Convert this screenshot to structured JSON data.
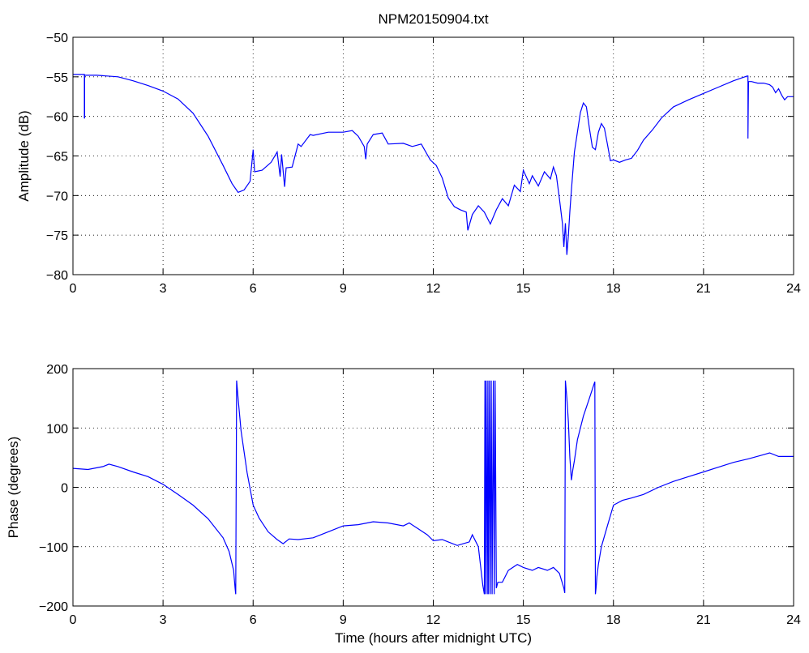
{
  "title": "NPM20150904.txt",
  "chart_data": [
    {
      "type": "line",
      "title": "NPM20150904.txt",
      "xlabel": "",
      "ylabel": "Amplitude (dB)",
      "xlim": [
        0,
        24
      ],
      "ylim": [
        -80,
        -50
      ],
      "xticks": [
        0,
        3,
        6,
        9,
        12,
        15,
        18,
        21,
        24
      ],
      "xtick_labels": [
        "0",
        "3",
        "6",
        "9",
        "12",
        "15",
        "18",
        "21",
        "24"
      ],
      "yticks": [
        -50,
        -55,
        -60,
        -65,
        -70,
        -75,
        -80
      ],
      "ytick_labels": [
        "−50",
        "−55",
        "−60",
        "−65",
        "−70",
        "−75",
        "−80"
      ],
      "grid": true,
      "color": "#0000ff",
      "series": [
        {
          "x": [
            0,
            0.3,
            0.38,
            0.38,
            0.39,
            0.39,
            0.8,
            1.5,
            2.0,
            2.5,
            3.0,
            3.5,
            4.0,
            4.5,
            5.0,
            5.3,
            5.5,
            5.7,
            5.9,
            6.0,
            6.05,
            6.3,
            6.6,
            6.8,
            6.9,
            6.95,
            7.05,
            7.1,
            7.3,
            7.5,
            7.6,
            7.9,
            8.0,
            8.5,
            9.0,
            9.3,
            9.5,
            9.7,
            9.75,
            9.8,
            10.0,
            10.3,
            10.5,
            11.0,
            11.3,
            11.6,
            11.9,
            12.1,
            12.3,
            12.5,
            12.7,
            12.9,
            13.1,
            13.15,
            13.3,
            13.5,
            13.7,
            13.9,
            14.1,
            14.3,
            14.5,
            14.7,
            14.9,
            15.0,
            15.2,
            15.3,
            15.5,
            15.7,
            15.9,
            16.0,
            16.1,
            16.2,
            16.3,
            16.35,
            16.4,
            16.45,
            16.5,
            16.55,
            16.6,
            16.7,
            16.8,
            16.9,
            17.0,
            17.1,
            17.2,
            17.3,
            17.4,
            17.5,
            17.6,
            17.7,
            17.8,
            17.9,
            18.0,
            18.2,
            18.4,
            18.6,
            18.8,
            19.0,
            19.3,
            19.6,
            20.0,
            20.5,
            21.0,
            21.5,
            22.0,
            22.3,
            22.45,
            22.48,
            22.48,
            22.5,
            22.6,
            22.8,
            23.0,
            23.2,
            23.3,
            23.4,
            23.5,
            23.6,
            23.7,
            23.8,
            24.0
          ],
          "y": [
            -54.7,
            -54.7,
            -54.7,
            -60.2,
            -60.2,
            -54.8,
            -54.8,
            -55.0,
            -55.5,
            -56.1,
            -56.8,
            -57.8,
            -59.6,
            -62.5,
            -66.2,
            -68.5,
            -69.6,
            -69.3,
            -68.2,
            -64.2,
            -67.0,
            -66.8,
            -65.8,
            -64.5,
            -67.6,
            -64.8,
            -68.9,
            -66.5,
            -66.4,
            -63.5,
            -63.8,
            -62.3,
            -62.4,
            -62.0,
            -62.0,
            -61.8,
            -62.5,
            -63.8,
            -65.4,
            -63.5,
            -62.3,
            -62.1,
            -63.5,
            -63.4,
            -63.8,
            -63.5,
            -65.5,
            -66.2,
            -67.8,
            -70.3,
            -71.4,
            -71.8,
            -72.1,
            -74.4,
            -72.4,
            -71.3,
            -72.1,
            -73.6,
            -71.8,
            -70.4,
            -71.3,
            -68.7,
            -69.5,
            -66.8,
            -68.5,
            -67.5,
            -68.8,
            -67.0,
            -67.9,
            -66.4,
            -67.5,
            -70.4,
            -73.5,
            -76.5,
            -73.5,
            -77.5,
            -75.0,
            -72.0,
            -69.3,
            -64.5,
            -62.0,
            -59.5,
            -58.3,
            -58.8,
            -61.5,
            -63.9,
            -64.2,
            -62.0,
            -60.9,
            -61.5,
            -63.5,
            -65.6,
            -65.5,
            -65.8,
            -65.5,
            -65.3,
            -64.3,
            -63.0,
            -61.7,
            -60.2,
            -58.8,
            -57.9,
            -57.1,
            -56.3,
            -55.5,
            -55.1,
            -54.9,
            -54.9,
            -62.8,
            -55.6,
            -55.6,
            -55.8,
            -55.8,
            -56.0,
            -56.3,
            -57.0,
            -56.5,
            -57.3,
            -57.9,
            -57.5,
            -57.5
          ]
        }
      ]
    },
    {
      "type": "line",
      "title": "",
      "xlabel": "Time (hours after midnight UTC)",
      "ylabel": "Phase (degrees)",
      "xlim": [
        0,
        24
      ],
      "ylim": [
        -200,
        200
      ],
      "xticks": [
        0,
        3,
        6,
        9,
        12,
        15,
        18,
        21,
        24
      ],
      "xtick_labels": [
        "0",
        "3",
        "6",
        "9",
        "12",
        "15",
        "18",
        "21",
        "24"
      ],
      "yticks": [
        200,
        100,
        0,
        -100,
        -200
      ],
      "ytick_labels": [
        "200",
        "100",
        "0",
        "−100",
        "−200"
      ],
      "grid": true,
      "color": "#0000ff",
      "series": [
        {
          "x": [
            0,
            0.5,
            1.0,
            1.2,
            1.5,
            2.0,
            2.5,
            3.0,
            3.5,
            4.0,
            4.5,
            5.0,
            5.2,
            5.35,
            5.4,
            5.42,
            5.45,
            5.5,
            5.6,
            5.8,
            6.0,
            6.2,
            6.5,
            6.8,
            7.0,
            7.2,
            7.5,
            8.0,
            8.5,
            9.0,
            9.5,
            10.0,
            10.5,
            11.0,
            11.2,
            11.5,
            11.8,
            12.0,
            12.3,
            12.5,
            12.8,
            13.0,
            13.2,
            13.3,
            13.5,
            13.65,
            13.7,
            13.72,
            13.74,
            13.76,
            13.8,
            13.82,
            13.84,
            13.87,
            13.9,
            13.93,
            13.96,
            14.0,
            14.03,
            14.06,
            14.1,
            14.15,
            14.3,
            14.5,
            14.8,
            15.0,
            15.3,
            15.5,
            15.8,
            16.0,
            16.2,
            16.35,
            16.38,
            16.4,
            16.45,
            16.5,
            16.55,
            16.6,
            16.65,
            16.7,
            16.8,
            17.0,
            17.2,
            17.38,
            17.4,
            17.42,
            17.45,
            17.5,
            17.6,
            17.8,
            18.0,
            18.3,
            18.6,
            19.0,
            19.5,
            20.0,
            20.5,
            21.0,
            21.5,
            22.0,
            22.5,
            23.0,
            23.2,
            23.5,
            24.0
          ],
          "y": [
            32,
            30,
            35,
            39,
            35,
            26,
            18,
            5,
            -12,
            -30,
            -53,
            -85,
            -108,
            -140,
            -170,
            -180,
            180,
            150,
            95,
            25,
            -30,
            -52,
            -75,
            -88,
            -95,
            -87,
            -88,
            -85,
            -75,
            -65,
            -63,
            -58,
            -60,
            -65,
            -60,
            -70,
            -80,
            -90,
            -88,
            -92,
            -98,
            -95,
            -92,
            -80,
            -100,
            -165,
            -180,
            180,
            -180,
            180,
            -180,
            180,
            -180,
            180,
            -180,
            180,
            -180,
            180,
            -180,
            180,
            -170,
            -160,
            -160,
            -140,
            -130,
            -135,
            -140,
            -135,
            -140,
            -135,
            -145,
            -170,
            -178,
            180,
            150,
            110,
            50,
            12,
            30,
            45,
            80,
            120,
            150,
            178,
            -180,
            -170,
            -150,
            -130,
            -100,
            -65,
            -30,
            -22,
            -18,
            -12,
            0,
            10,
            18,
            26,
            34,
            42,
            48,
            55,
            58,
            52,
            52
          ]
        }
      ]
    }
  ]
}
